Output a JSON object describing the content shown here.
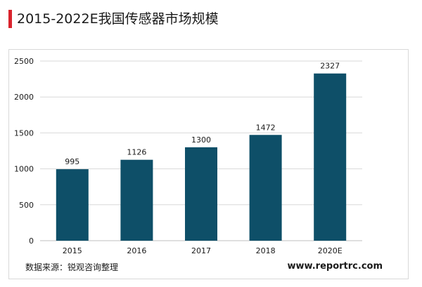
{
  "chart_data": {
    "type": "bar",
    "title": "2015-2022E我国传感器市场规模",
    "categories": [
      "2015",
      "2016",
      "2017",
      "2018",
      "2020E"
    ],
    "values": [
      995,
      1126,
      1300,
      1472,
      2327
    ],
    "data_labels": [
      "995",
      "1126",
      "1300",
      "1472",
      "2327"
    ],
    "y_ticks": [
      "0",
      "500",
      "1000",
      "1500",
      "2000",
      "2500"
    ],
    "ylim": [
      0,
      2500
    ],
    "xlabel": "",
    "ylabel": "",
    "grid": true,
    "bar_color": "#0e4f68"
  },
  "footer": {
    "source": "数据来源：锐观咨询整理",
    "website": "www.reportrc.com"
  }
}
